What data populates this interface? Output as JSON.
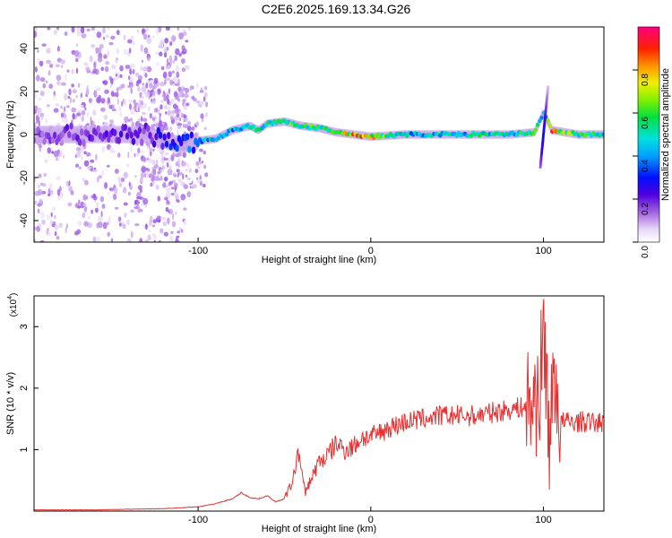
{
  "title": "C2E6.2025.169.13.34.G26",
  "chart_data": [
    {
      "type": "heatmap",
      "xlabel": "Height of straight line (km)",
      "ylabel": "Frequency (Hz)",
      "xlim": [
        -195,
        135
      ],
      "ylim": [
        -50,
        50
      ],
      "xticks": [
        -100,
        0,
        100
      ],
      "yticks": [
        -40,
        -20,
        0,
        20,
        40
      ],
      "colorbar": {
        "label": "Normalized spectral amplitude",
        "range": [
          0,
          1
        ],
        "ticks": [
          "0.0",
          "0.2",
          "0.4",
          "0.6",
          "0.8"
        ],
        "tick_values": [
          0,
          0.2,
          0.4,
          0.6,
          0.8
        ]
      },
      "ridge": {
        "x": [
          -195,
          -160,
          -130,
          -110,
          -100,
          -90,
          -80,
          -70,
          -65,
          -60,
          -50,
          -40,
          -30,
          -20,
          -10,
          0,
          20,
          40,
          60,
          80,
          95,
          100,
          105,
          120,
          135
        ],
        "freq": [
          0,
          0,
          0,
          -5,
          -3,
          -2,
          2,
          4,
          2,
          5,
          6,
          4,
          3,
          1,
          0,
          -1,
          0,
          0,
          0,
          0,
          1,
          10,
          2,
          0,
          0
        ],
        "amplitude": [
          0.15,
          0.2,
          0.2,
          0.3,
          0.4,
          0.5,
          0.45,
          0.5,
          0.5,
          0.55,
          0.55,
          0.6,
          0.55,
          0.7,
          0.8,
          0.75,
          0.45,
          0.45,
          0.5,
          0.5,
          0.55,
          0.4,
          0.8,
          0.55,
          0.5
        ]
      }
    },
    {
      "type": "line",
      "xlabel": "Height of straight line (km)",
      "ylabel": "SNR (10 * v/v)",
      "y_multiplier": "(x10",
      "y_multiplier_exp": "4",
      "xlim": [
        -195,
        135
      ],
      "ylim": [
        0,
        3.5
      ],
      "xticks": [
        -100,
        0,
        100
      ],
      "yticks": [
        1,
        2,
        3
      ],
      "series": [
        {
          "color": "#e83030",
          "x": [
            -195,
            -160,
            -120,
            -100,
            -90,
            -80,
            -75,
            -70,
            -65,
            -60,
            -55,
            -50,
            -45,
            -42,
            -40,
            -38,
            -35,
            -30,
            -25,
            -20,
            -15,
            -10,
            -5,
            0,
            10,
            20,
            30,
            40,
            50,
            60,
            70,
            80,
            90,
            95,
            98,
            100,
            102,
            104,
            106,
            108,
            110,
            115,
            120,
            125,
            135
          ],
          "y": [
            0.02,
            0.02,
            0.04,
            0.07,
            0.12,
            0.2,
            0.3,
            0.22,
            0.2,
            0.25,
            0.15,
            0.2,
            0.5,
            1.0,
            0.6,
            0.3,
            0.5,
            0.8,
            0.9,
            1.1,
            1.0,
            1.05,
            1.2,
            1.2,
            1.35,
            1.45,
            1.5,
            1.55,
            1.55,
            1.55,
            1.6,
            1.65,
            1.7,
            1.8,
            2.0,
            3.0,
            2.0,
            1.0,
            2.5,
            1.8,
            1.45,
            1.45,
            1.45,
            1.45,
            1.43
          ]
        }
      ]
    }
  ]
}
